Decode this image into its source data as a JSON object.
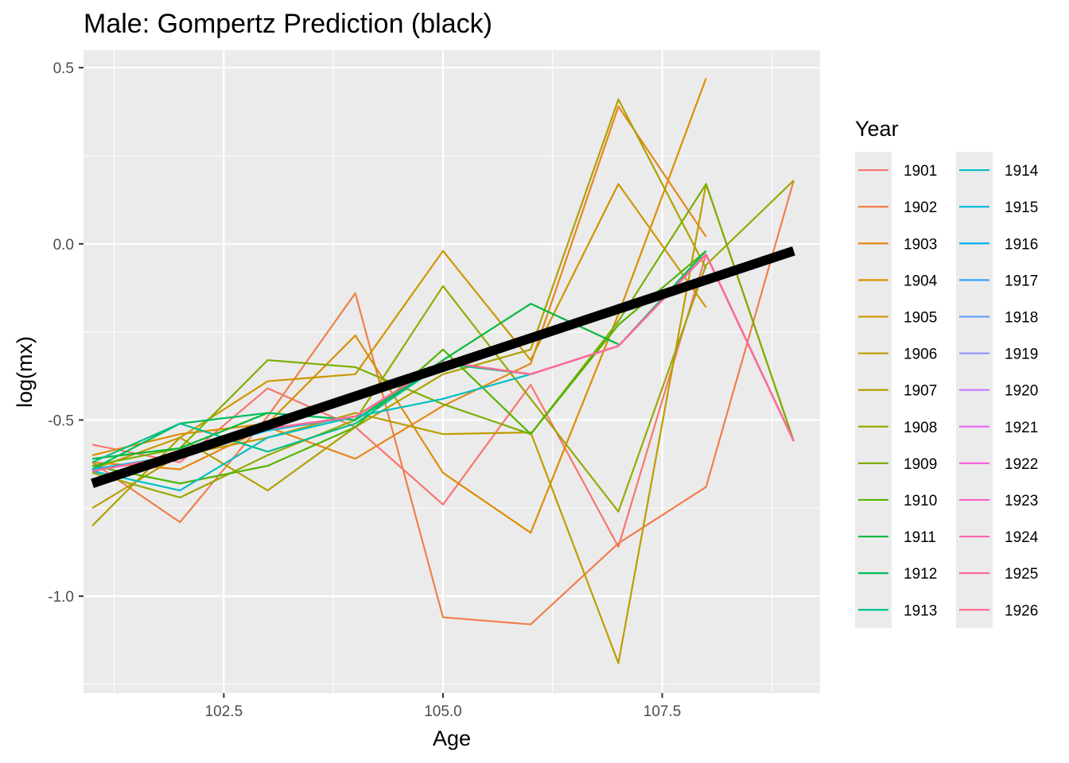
{
  "chart_data": {
    "type": "line",
    "title": "Male: Gompertz Prediction (black)",
    "xlabel": "Age",
    "ylabel": "log(mx)",
    "xlim": [
      100.9,
      109.3
    ],
    "ylim": [
      -1.275,
      0.55
    ],
    "x_ticks": [
      102.5,
      105.0,
      107.5
    ],
    "x_tick_labels": [
      "102.5",
      "105.0",
      "107.5"
    ],
    "y_ticks": [
      0.5,
      0.0,
      -0.5,
      -1.0
    ],
    "y_tick_labels": [
      "0.5",
      "0.0",
      "-0.5",
      "-1.0"
    ],
    "grid": true,
    "legend": {
      "title": "Year",
      "position": "right"
    },
    "series": [
      {
        "name": "1901",
        "color": "#F8766D",
        "x": [
          101,
          102,
          103,
          104,
          105,
          106,
          107,
          108,
          109
        ],
        "y": [
          -0.57,
          -0.62,
          -0.41,
          -0.52,
          -0.74,
          -0.4,
          -0.86,
          -0.03,
          -0.56
        ]
      },
      {
        "name": "1902",
        "color": "#F17E4B",
        "x": [
          101,
          102,
          103,
          104,
          105,
          106,
          107,
          108,
          109
        ],
        "y": [
          -0.62,
          -0.79,
          -0.49,
          -0.14,
          -1.06,
          -1.08,
          -0.85,
          -0.69,
          0.18
        ]
      },
      {
        "name": "1903",
        "color": "#E7861B",
        "x": [
          101,
          102,
          103,
          104,
          105,
          106,
          107,
          108
        ],
        "y": [
          -0.62,
          -0.64,
          -0.52,
          -0.61,
          -0.46,
          -0.34,
          0.39,
          0.02
        ]
      },
      {
        "name": "1904",
        "color": "#DB8E00",
        "x": [
          101,
          102,
          103,
          104,
          105,
          106,
          107,
          108
        ],
        "y": [
          -0.6,
          -0.54,
          -0.51,
          -0.26,
          -0.65,
          -0.82,
          -0.2,
          0.47
        ]
      },
      {
        "name": "1905",
        "color": "#CD9600",
        "x": [
          101,
          102,
          103,
          104,
          105,
          106,
          107,
          108
        ],
        "y": [
          -0.64,
          -0.55,
          -0.39,
          -0.37,
          -0.02,
          -0.33,
          0.17,
          -0.18
        ]
      },
      {
        "name": "1906",
        "color": "#BE9C00",
        "x": [
          101,
          102,
          103,
          104,
          105,
          106,
          107,
          108,
          109
        ],
        "y": [
          -0.75,
          -0.6,
          -0.55,
          -0.48,
          -0.54,
          -0.535,
          -1.19,
          0.17,
          -0.56
        ]
      },
      {
        "name": "1907",
        "color": "#AEA200",
        "x": [
          101,
          102,
          103,
          104,
          105,
          106,
          107,
          108
        ],
        "y": [
          -0.8,
          -0.55,
          -0.7,
          -0.52,
          -0.37,
          -0.3,
          0.41,
          -0.07
        ]
      },
      {
        "name": "1908",
        "color": "#9AA800",
        "x": [
          101,
          102,
          103,
          104,
          105,
          106,
          107,
          108,
          109
        ],
        "y": [
          -0.65,
          -0.72,
          -0.6,
          -0.5,
          -0.12,
          -0.44,
          -0.76,
          -0.06,
          0.18
        ]
      },
      {
        "name": "1909",
        "color": "#7CAE00",
        "x": [
          101,
          102,
          103,
          104,
          105,
          106,
          107,
          108,
          109
        ],
        "y": [
          -0.63,
          -0.58,
          -0.33,
          -0.35,
          -0.455,
          -0.54,
          -0.22,
          0.17,
          -0.56
        ]
      },
      {
        "name": "1910",
        "color": "#53B400",
        "x": [
          101,
          102,
          103,
          104,
          105,
          106,
          107,
          108
        ],
        "y": [
          -0.63,
          -0.68,
          -0.63,
          -0.52,
          -0.3,
          -0.54,
          -0.23,
          -0.02
        ]
      },
      {
        "name": "1911",
        "color": "#00BA38",
        "x": [
          101,
          102,
          103,
          104,
          105,
          106,
          107
        ],
        "y": [
          -0.61,
          -0.58,
          -0.48,
          -0.5,
          -0.33,
          -0.17,
          -0.285
        ]
      },
      {
        "name": "1912",
        "color": "#00BD5C",
        "x": [
          101,
          102,
          103,
          104,
          105,
          106,
          107,
          108
        ],
        "y": [
          -0.64,
          -0.51,
          -0.48,
          -0.5,
          -0.34,
          -0.37,
          -0.29,
          -0.02
        ]
      },
      {
        "name": "1913",
        "color": "#00C08B",
        "x": [
          101,
          102,
          103,
          104,
          105,
          106,
          107,
          108
        ],
        "y": [
          -0.62,
          -0.51,
          -0.59,
          -0.51,
          -0.34,
          -0.37,
          -0.29,
          -0.03
        ]
      },
      {
        "name": "1914",
        "color": "#00BFC4",
        "x": [
          101,
          102,
          103,
          104,
          105,
          106,
          107,
          108
        ],
        "y": [
          -0.645,
          -0.7,
          -0.55,
          -0.49,
          -0.44,
          -0.37,
          -0.29,
          -0.03
        ]
      },
      {
        "name": "1915",
        "color": "#00BAE0",
        "x": [
          101,
          102,
          103,
          104,
          105,
          106,
          107,
          108,
          109
        ],
        "y": [
          -0.64,
          -0.6,
          -0.53,
          -0.49,
          -0.335,
          -0.37,
          -0.29,
          -0.03,
          -0.56
        ]
      },
      {
        "name": "1916",
        "color": "#00B0F6",
        "x": [
          101,
          102,
          103,
          104,
          105,
          106,
          107,
          108,
          109
        ],
        "y": [
          -0.645,
          -0.6,
          -0.525,
          -0.49,
          -0.335,
          -0.37,
          -0.29,
          -0.03,
          -0.56
        ]
      },
      {
        "name": "1917",
        "color": "#35A2FF",
        "x": [
          101,
          102,
          103,
          104,
          105,
          106,
          107,
          108,
          109
        ],
        "y": [
          -0.645,
          -0.6,
          -0.525,
          -0.49,
          -0.335,
          -0.37,
          -0.29,
          -0.03,
          -0.56
        ]
      },
      {
        "name": "1918",
        "color": "#619CFF",
        "x": [
          101,
          102,
          103,
          104,
          105,
          106,
          107,
          108,
          109
        ],
        "y": [
          -0.645,
          -0.6,
          -0.525,
          -0.49,
          -0.335,
          -0.37,
          -0.29,
          -0.03,
          -0.56
        ]
      },
      {
        "name": "1919",
        "color": "#9590FF",
        "x": [
          101,
          102,
          103,
          104,
          105,
          106,
          107,
          108,
          109
        ],
        "y": [
          -0.645,
          -0.6,
          -0.525,
          -0.49,
          -0.335,
          -0.37,
          -0.29,
          -0.03,
          -0.56
        ]
      },
      {
        "name": "1920",
        "color": "#C77CFF",
        "x": [
          101,
          102,
          103,
          104,
          105,
          106,
          107,
          108,
          109
        ],
        "y": [
          -0.645,
          -0.6,
          -0.525,
          -0.49,
          -0.335,
          -0.37,
          -0.29,
          -0.03,
          -0.56
        ]
      },
      {
        "name": "1921",
        "color": "#E76BF3",
        "x": [
          101,
          102,
          103,
          104,
          105,
          106,
          107,
          108,
          109
        ],
        "y": [
          -0.645,
          -0.6,
          -0.525,
          -0.49,
          -0.335,
          -0.37,
          -0.29,
          -0.03,
          -0.56
        ]
      },
      {
        "name": "1922",
        "color": "#F962DD",
        "x": [
          101,
          102,
          103,
          104,
          105,
          106,
          107,
          108,
          109
        ],
        "y": [
          -0.645,
          -0.6,
          -0.525,
          -0.49,
          -0.335,
          -0.37,
          -0.29,
          -0.03,
          -0.56
        ]
      },
      {
        "name": "1923",
        "color": "#FF61C3",
        "x": [
          101,
          102,
          103,
          104,
          105,
          106,
          107,
          108,
          109
        ],
        "y": [
          -0.645,
          -0.6,
          -0.525,
          -0.49,
          -0.335,
          -0.37,
          -0.29,
          -0.03,
          -0.56
        ]
      },
      {
        "name": "1924",
        "color": "#FF64B0",
        "x": [
          101,
          102,
          103,
          104,
          105,
          106,
          107,
          108,
          109
        ],
        "y": [
          -0.645,
          -0.6,
          -0.525,
          -0.49,
          -0.335,
          -0.37,
          -0.29,
          -0.03,
          -0.56
        ]
      },
      {
        "name": "1925",
        "color": "#FF699C",
        "x": [
          101,
          102,
          103,
          104,
          105,
          106,
          107,
          108,
          109
        ],
        "y": [
          -0.645,
          -0.6,
          -0.525,
          -0.49,
          -0.335,
          -0.37,
          -0.29,
          -0.03,
          -0.56
        ]
      },
      {
        "name": "1926",
        "color": "#FF6C91",
        "x": [
          101,
          102,
          103,
          104,
          105,
          106,
          107,
          108,
          109
        ],
        "y": [
          -0.645,
          -0.6,
          -0.525,
          -0.49,
          -0.335,
          -0.37,
          -0.29,
          -0.03,
          -0.56
        ]
      }
    ],
    "prediction": {
      "color": "#000000",
      "x": [
        101,
        109
      ],
      "y": [
        -0.68,
        -0.02
      ]
    },
    "colors": {
      "panel_background": "#EBEBEB",
      "grid": "#FFFFFF",
      "prediction": "#000000"
    }
  }
}
